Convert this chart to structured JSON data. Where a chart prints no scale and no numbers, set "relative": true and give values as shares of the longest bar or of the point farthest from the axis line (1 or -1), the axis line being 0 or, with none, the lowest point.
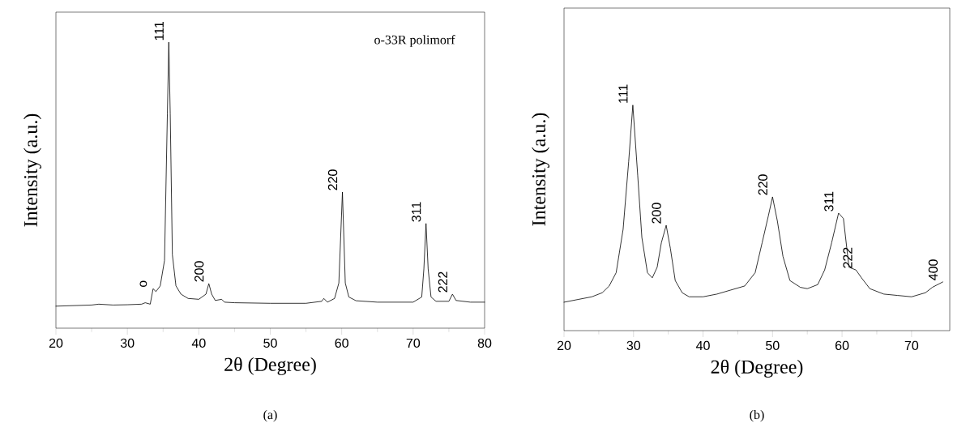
{
  "chart_data": [
    {
      "type": "line",
      "title": "(a)",
      "xlabel": "2θ (Degree)",
      "ylabel": "Intensity (a.u.)",
      "relative": true,
      "xlim": [
        20,
        80
      ],
      "xticks": [
        20,
        30,
        40,
        50,
        60,
        70,
        80
      ],
      "series": [
        {
          "color": "#000000",
          "x": [
            20,
            25,
            26,
            28,
            30,
            32,
            32.5,
            33.2,
            33.6,
            34.0,
            34.6,
            35.2,
            35.6,
            35.8,
            36.0,
            36.3,
            36.8,
            37.5,
            38.5,
            40,
            41.0,
            41.4,
            41.8,
            42.3,
            43.2,
            43.6,
            45,
            50,
            55,
            57.2,
            57.5,
            58,
            59.0,
            59.6,
            60.1,
            60.5,
            61.0,
            62,
            65,
            70,
            71.2,
            71.5,
            71.8,
            72.1,
            72.5,
            73.2,
            75,
            75.5,
            76,
            78,
            80
          ],
          "values": [
            0.077,
            0.081,
            0.084,
            0.081,
            0.082,
            0.084,
            0.089,
            0.084,
            0.138,
            0.128,
            0.148,
            0.237,
            0.75,
            1,
            0.75,
            0.257,
            0.148,
            0.119,
            0.104,
            0.101,
            0.119,
            0.156,
            0.119,
            0.097,
            0.101,
            0.091,
            0.089,
            0.087,
            0.087,
            0.094,
            0.104,
            0.091,
            0.104,
            0.158,
            0.476,
            0.158,
            0.109,
            0.096,
            0.091,
            0.091,
            0.109,
            0.207,
            0.366,
            0.207,
            0.109,
            0.094,
            0.094,
            0.119,
            0.097,
            0.091,
            0.091
          ]
        }
      ],
      "annotations": [
        {
          "text": "o",
          "x": 33.6,
          "y": 0.138
        },
        {
          "text": "111",
          "x": 35.8,
          "y": 1
        },
        {
          "text": "200",
          "x": 41.4,
          "y": 0.156
        },
        {
          "text": "220",
          "x": 60.1,
          "y": 0.476
        },
        {
          "text": "311",
          "x": 71.8,
          "y": 0.366
        },
        {
          "text": "222",
          "x": 75.5,
          "y": 0.119
        },
        "o-33R polimorf"
      ]
    },
    {
      "type": "line",
      "title": "(b)",
      "xlabel": "2θ (Degree)",
      "ylabel": "Intensity (a.u.)",
      "relative": true,
      "xlim": [
        20,
        75.5
      ],
      "xticks": [
        20,
        30,
        40,
        50,
        60,
        70
      ],
      "series": [
        {
          "color": "#000000",
          "x": [
            20,
            22,
            24,
            25.5,
            26.5,
            27.5,
            28.5,
            29.3,
            29.9,
            30.6,
            31.2,
            32,
            32.7,
            33.4,
            34.0,
            34.7,
            35.3,
            36,
            37,
            38,
            40,
            42,
            44,
            46,
            47.5,
            48.5,
            49.4,
            50,
            50.7,
            51.5,
            52.5,
            54,
            55,
            56.5,
            57.5,
            58.5,
            59.5,
            60.2,
            61,
            62.0,
            62.8,
            64,
            66,
            68,
            70,
            72,
            73,
            74.5
          ],
          "values": [
            0.126,
            0.138,
            0.15,
            0.168,
            0.198,
            0.257,
            0.449,
            0.749,
            1,
            0.689,
            0.413,
            0.257,
            0.234,
            0.281,
            0.389,
            0.467,
            0.365,
            0.222,
            0.168,
            0.15,
            0.15,
            0.162,
            0.18,
            0.198,
            0.257,
            0.389,
            0.509,
            0.593,
            0.485,
            0.329,
            0.222,
            0.192,
            0.186,
            0.204,
            0.269,
            0.389,
            0.521,
            0.497,
            0.281,
            0.269,
            0.234,
            0.186,
            0.162,
            0.156,
            0.15,
            0.168,
            0.192,
            0.216
          ]
        }
      ],
      "annotations": [
        {
          "text": "111",
          "x": 29.9,
          "y": 1
        },
        {
          "text": "200",
          "x": 34.7,
          "y": 0.467
        },
        {
          "text": "220",
          "x": 50,
          "y": 0.593
        },
        {
          "text": "311",
          "x": 59.5,
          "y": 0.521
        },
        {
          "text": "222",
          "x": 62.2,
          "y": 0.269
        },
        {
          "text": "400",
          "x": 74.5,
          "y": 0.216
        }
      ]
    }
  ]
}
